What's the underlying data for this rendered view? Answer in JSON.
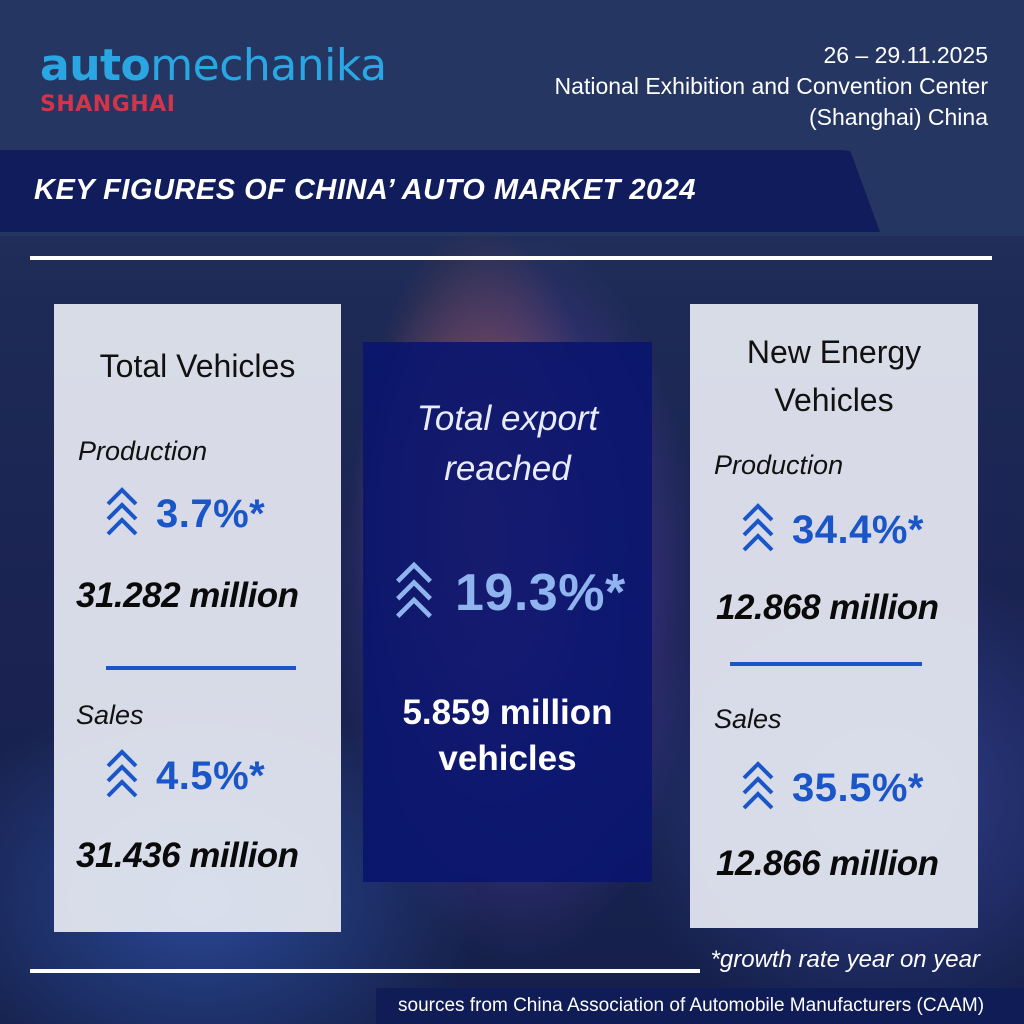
{
  "brand": {
    "logo_bold": "auto",
    "logo_light": "mechanika",
    "logo_city": "SHANGHAI"
  },
  "event": {
    "dates": "26 – 29.11.2025",
    "venue_line1": "National Exhibition and Convention Center",
    "venue_line2": "(Shanghai) China"
  },
  "title": "KEY FIGURES OF CHINA’ AUTO MARKET 2024",
  "total_vehicles": {
    "heading": "Total Vehicles",
    "production": {
      "label": "Production",
      "growth": "3.7%*",
      "value": "31.282 million"
    },
    "sales": {
      "label": "Sales",
      "growth": "4.5%*",
      "value": "31.436 million"
    }
  },
  "export": {
    "heading_line1": "Total export",
    "heading_line2": "reached",
    "growth": "19.3%*",
    "value_line1": "5.859 million",
    "value_line2": "vehicles"
  },
  "nev": {
    "heading_line1": "New Energy",
    "heading_line2": "Vehicles",
    "production": {
      "label": "Production",
      "growth": "34.4%*",
      "value": "12.868 million"
    },
    "sales": {
      "label": "Sales",
      "growth": "35.5%*",
      "value": "12.866 million"
    }
  },
  "footnote": "*growth rate year on year",
  "source": "sources from China Association of Automobile Manufacturers (CAAM)",
  "colors": {
    "accent_blue": "#1a56c8",
    "brand_cyan": "#2aa7e2",
    "brand_red": "#d4344a",
    "title_bar": "#101c5c"
  },
  "icons": {
    "growth_indicator": "triple-chevron-up-icon"
  }
}
